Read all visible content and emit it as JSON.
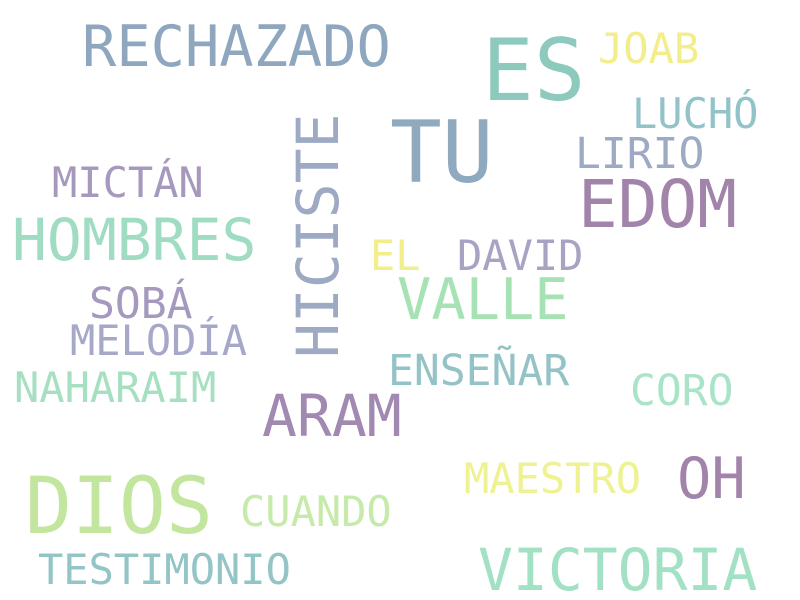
{
  "words": [
    {
      "text": "RECHAZADO",
      "color": "#8fa6bf"
    },
    {
      "text": "ES",
      "color": "#8dc9bc"
    },
    {
      "text": "JOAB",
      "color": "#f3ee8c"
    },
    {
      "text": "TU",
      "color": "#8fa9bf"
    },
    {
      "text": "LUCHÓ",
      "color": "#92c3c8"
    },
    {
      "text": "HICISTE",
      "color": "#9eaac3"
    },
    {
      "text": "LIRIO",
      "color": "#9eaac3"
    },
    {
      "text": "MICTÁN",
      "color": "#a799bd"
    },
    {
      "text": "EDOM",
      "color": "#a284ab"
    },
    {
      "text": "HOMBRES",
      "color": "#9fdcc1"
    },
    {
      "text": "EL",
      "color": "#f3ee8c"
    },
    {
      "text": "DAVID",
      "color": "#a6a3c3"
    },
    {
      "text": "SOBÁ",
      "color": "#a599bf"
    },
    {
      "text": "VALLE",
      "color": "#a7e2b5"
    },
    {
      "text": "MELODÍA",
      "color": "#a6a8c8"
    },
    {
      "text": "NAHARAIM",
      "color": "#a7dfc1"
    },
    {
      "text": "ENSEÑAR",
      "color": "#93c2c7"
    },
    {
      "text": "CORO",
      "color": "#a9e3c8"
    },
    {
      "text": "ARAM",
      "color": "#a289b1"
    },
    {
      "text": "DIOS",
      "color": "#c3e69e"
    },
    {
      "text": "MAESTRO",
      "color": "#eff293"
    },
    {
      "text": "OH",
      "color": "#a284ab"
    },
    {
      "text": "CUANDO",
      "color": "#c6eaaa"
    },
    {
      "text": "TESTIMONIO",
      "color": "#93c4c6"
    },
    {
      "text": "VICTORIA",
      "color": "#a2e1c4"
    }
  ]
}
